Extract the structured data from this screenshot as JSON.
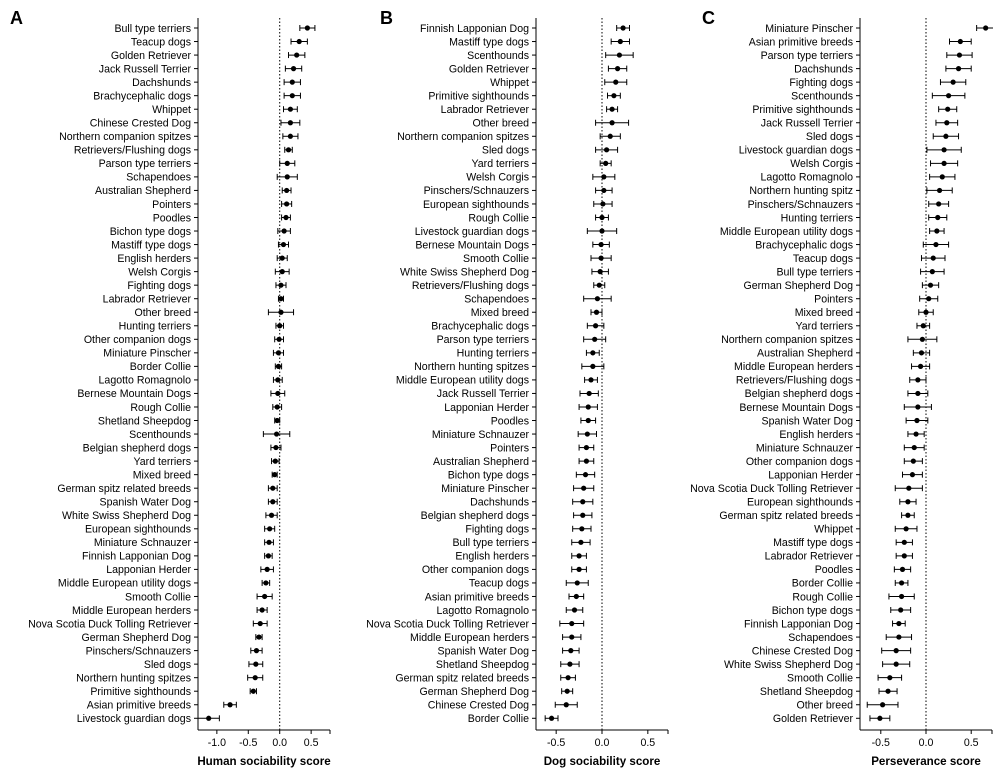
{
  "chart_data": [
    {
      "type": "scatter",
      "subtype": "forest-plot",
      "panel_label": "A",
      "xlabel": "Human sociability score",
      "xlim": [
        -1.3,
        0.8
      ],
      "xticks": [
        -1.0,
        -0.5,
        0.0,
        0.5
      ],
      "xtick_labels": [
        "-1.0",
        "-0.5",
        "0.0",
        "0.5"
      ],
      "reference_line": 0,
      "categories": [
        "Bull type terriers",
        "Teacup dogs",
        "Golden Retriever",
        "Jack Russell Terrier",
        "Dachshunds",
        "Brachycephalic dogs",
        "Whippet",
        "Chinese Crested Dog",
        "Northern companion spitzes",
        "Retrievers/Flushing dogs",
        "Parson type terriers",
        "Schapendoes",
        "Australian Shepherd",
        "Pointers",
        "Poodles",
        "Bichon type dogs",
        "Mastiff type dogs",
        "English herders",
        "Welsh Corgis",
        "Fighting dogs",
        "Labrador Retriever",
        "Other breed",
        "Hunting terriers",
        "Other companion dogs",
        "Miniature Pinscher",
        "Border Collie",
        "Lagotto Romagnolo",
        "Bernese Mountain Dogs",
        "Rough Collie",
        "Shetland Sheepdog",
        "Scenthounds",
        "Belgian shepherd dogs",
        "Yard terriers",
        "Mixed breed",
        "German spitz related breeds",
        "Spanish Water Dog",
        "White Swiss Shepherd Dog",
        "European sighthounds",
        "Miniature Schnauzer",
        "Finnish Lapponian Dog",
        "Lapponian Herder",
        "Middle European utility dogs",
        "Smooth Collie",
        "Middle European herders",
        "Nova Scotia Duck Tolling Retriever",
        "German Shepherd Dog",
        "Pinschers/Schnauzers",
        "Sled dogs",
        "Northern hunting spitzes",
        "Primitive sighthounds",
        "Asian primitive breeds",
        "Livestock guardian dogs"
      ],
      "values": [
        0.44,
        0.31,
        0.27,
        0.22,
        0.2,
        0.2,
        0.17,
        0.17,
        0.17,
        0.14,
        0.12,
        0.12,
        0.11,
        0.11,
        0.1,
        0.07,
        0.06,
        0.04,
        0.04,
        0.02,
        0.02,
        0.02,
        0.0,
        -0.01,
        -0.02,
        -0.02,
        -0.03,
        -0.03,
        -0.04,
        -0.04,
        -0.05,
        -0.06,
        -0.07,
        -0.08,
        -0.11,
        -0.11,
        -0.13,
        -0.16,
        -0.17,
        -0.18,
        -0.2,
        -0.22,
        -0.24,
        -0.28,
        -0.31,
        -0.33,
        -0.37,
        -0.38,
        -0.39,
        -0.42,
        -0.79,
        -1.13
      ],
      "ci_low": [
        0.32,
        0.18,
        0.14,
        0.09,
        0.07,
        0.07,
        0.06,
        0.02,
        0.05,
        0.08,
        0.0,
        -0.04,
        0.04,
        0.03,
        0.03,
        -0.03,
        -0.02,
        -0.04,
        -0.07,
        -0.06,
        -0.02,
        -0.18,
        -0.06,
        -0.08,
        -0.1,
        -0.07,
        -0.1,
        -0.14,
        -0.11,
        -0.08,
        -0.26,
        -0.14,
        -0.13,
        -0.12,
        -0.18,
        -0.18,
        -0.22,
        -0.24,
        -0.24,
        -0.24,
        -0.3,
        -0.28,
        -0.36,
        -0.36,
        -0.42,
        -0.38,
        -0.46,
        -0.49,
        -0.51,
        -0.47,
        -0.89,
        -1.3
      ],
      "ci_high": [
        0.56,
        0.44,
        0.4,
        0.35,
        0.33,
        0.33,
        0.28,
        0.32,
        0.29,
        0.2,
        0.24,
        0.28,
        0.18,
        0.19,
        0.17,
        0.17,
        0.14,
        0.12,
        0.15,
        0.1,
        0.06,
        0.22,
        0.06,
        0.06,
        0.06,
        0.03,
        0.04,
        0.08,
        0.03,
        0.0,
        0.16,
        0.02,
        -0.01,
        -0.04,
        -0.04,
        -0.04,
        -0.04,
        -0.08,
        -0.1,
        -0.12,
        -0.1,
        -0.16,
        -0.12,
        -0.2,
        -0.2,
        -0.28,
        -0.28,
        -0.27,
        -0.27,
        -0.37,
        -0.69,
        -0.96
      ]
    },
    {
      "type": "scatter",
      "subtype": "forest-plot",
      "panel_label": "B",
      "xlabel": "Dog sociability score",
      "xlim": [
        -0.72,
        0.72
      ],
      "xticks": [
        -0.5,
        0.0,
        0.5
      ],
      "xtick_labels": [
        "-0.5",
        "0.0",
        "0.5"
      ],
      "reference_line": 0,
      "categories": [
        "Finnish Lapponian Dog",
        "Mastiff type dogs",
        "Scenthounds",
        "Golden Retriever",
        "Whippet",
        "Primitive sighthounds",
        "Labrador Retriever",
        "Other breed",
        "Northern companion spitzes",
        "Sled dogs",
        "Yard terriers",
        "Welsh Corgis",
        "Pinschers/Schnauzers",
        "European sighthounds",
        "Rough Collie",
        "Livestock guardian dogs",
        "Bernese Mountain Dogs",
        "Smooth Collie",
        "White Swiss Shepherd Dog",
        "Retrievers/Flushing dogs",
        "Schapendoes",
        "Mixed breed",
        "Brachycephalic dogs",
        "Parson type terriers",
        "Hunting terriers",
        "Northern hunting spitzes",
        "Middle European utility dogs",
        "Jack Russell Terrier",
        "Lapponian Herder",
        "Poodles",
        "Miniature Schnauzer",
        "Pointers",
        "Australian Shepherd",
        "Bichon type dogs",
        "Miniature Pinscher",
        "Dachshunds",
        "Belgian shepherd dogs",
        "Fighting dogs",
        "Bull type terriers",
        "English herders",
        "Other companion dogs",
        "Teacup dogs",
        "Asian primitive breeds",
        "Lagotto Romagnolo",
        "Nova Scotia Duck Tolling Retriever",
        "Middle European herders",
        "Spanish Water Dog",
        "Shetland Sheepdog",
        "German spitz related breeds",
        "German Shepherd Dog",
        "Chinese Crested Dog",
        "Border Collie"
      ],
      "values": [
        0.23,
        0.2,
        0.19,
        0.17,
        0.15,
        0.13,
        0.11,
        0.11,
        0.09,
        0.05,
        0.04,
        0.02,
        0.02,
        0.01,
        0.0,
        0.0,
        -0.01,
        -0.01,
        -0.02,
        -0.03,
        -0.05,
        -0.06,
        -0.07,
        -0.08,
        -0.1,
        -0.1,
        -0.12,
        -0.14,
        -0.15,
        -0.15,
        -0.16,
        -0.17,
        -0.17,
        -0.18,
        -0.2,
        -0.21,
        -0.21,
        -0.22,
        -0.23,
        -0.25,
        -0.25,
        -0.27,
        -0.28,
        -0.3,
        -0.33,
        -0.33,
        -0.34,
        -0.35,
        -0.37,
        -0.38,
        -0.39,
        -0.55
      ],
      "ci_low": [
        0.16,
        0.1,
        0.04,
        0.07,
        0.03,
        0.06,
        0.05,
        -0.07,
        -0.02,
        -0.07,
        -0.02,
        -0.1,
        -0.07,
        -0.09,
        -0.07,
        -0.16,
        -0.1,
        -0.12,
        -0.11,
        -0.09,
        -0.2,
        -0.12,
        -0.16,
        -0.2,
        -0.17,
        -0.22,
        -0.19,
        -0.24,
        -0.25,
        -0.23,
        -0.26,
        -0.25,
        -0.25,
        -0.28,
        -0.31,
        -0.32,
        -0.31,
        -0.32,
        -0.33,
        -0.33,
        -0.33,
        -0.39,
        -0.36,
        -0.39,
        -0.46,
        -0.43,
        -0.43,
        -0.45,
        -0.45,
        -0.44,
        -0.51,
        -0.62
      ],
      "ci_high": [
        0.3,
        0.3,
        0.34,
        0.27,
        0.27,
        0.2,
        0.17,
        0.29,
        0.2,
        0.17,
        0.1,
        0.14,
        0.11,
        0.11,
        0.07,
        0.16,
        0.08,
        0.1,
        0.07,
        0.03,
        0.1,
        0.0,
        0.02,
        0.04,
        -0.03,
        0.02,
        -0.05,
        -0.04,
        -0.05,
        -0.07,
        -0.06,
        -0.09,
        -0.09,
        -0.08,
        -0.09,
        -0.1,
        -0.11,
        -0.12,
        -0.13,
        -0.17,
        -0.17,
        -0.15,
        -0.2,
        -0.21,
        -0.2,
        -0.23,
        -0.25,
        -0.25,
        -0.29,
        -0.32,
        -0.27,
        -0.48
      ]
    },
    {
      "type": "scatter",
      "subtype": "forest-plot",
      "panel_label": "C",
      "xlabel": "Perseverance score",
      "xlim": [
        -0.73,
        0.73
      ],
      "xticks": [
        -0.5,
        0.0,
        0.5
      ],
      "xtick_labels": [
        "-0.5",
        "0.0",
        "0.5"
      ],
      "reference_line": 0,
      "categories": [
        "Miniature Pinscher",
        "Asian primitive breeds",
        "Parson type terriers",
        "Dachshunds",
        "Fighting dogs",
        "Scenthounds",
        "Primitive sighthounds",
        "Jack Russell Terrier",
        "Sled dogs",
        "Livestock guardian dogs",
        "Welsh Corgis",
        "Lagotto Romagnolo",
        "Northern hunting spitz",
        "Pinschers/Schnauzers",
        "Hunting terriers",
        "Middle European utility dogs",
        "Brachycephalic dogs",
        "Teacup dogs",
        "Bull type terriers",
        "German Shepherd Dog",
        "Pointers",
        "Mixed breed",
        "Yard terriers",
        "Northern companion spitzes",
        "Australian Shepherd",
        "Middle European herders",
        "Retrievers/Flushing dogs",
        "Belgian shepherd dogs",
        "Bernese Mountain Dogs",
        "Spanish Water Dog",
        "English herders",
        "Miniature Schnauzer",
        "Other companion dogs",
        "Lapponian Herder",
        "Nova Scotia Duck Tolling Retriever",
        "European sighthounds",
        "German spitz related breeds",
        "Whippet",
        "Mastiff type dogs",
        "Labrador Retriever",
        "Poodles",
        "Border Collie",
        "Rough Collie",
        "Bichon type dogs",
        "Finnish Lapponian Dog",
        "Schapendoes",
        "Chinese Crested Dog",
        "White Swiss Shepherd Dog",
        "Smooth Collie",
        "Shetland Sheepdog",
        "Other breed",
        "Golden Retriever"
      ],
      "values": [
        0.66,
        0.38,
        0.37,
        0.36,
        0.3,
        0.25,
        0.24,
        0.23,
        0.22,
        0.2,
        0.2,
        0.18,
        0.15,
        0.14,
        0.13,
        0.12,
        0.11,
        0.08,
        0.07,
        0.05,
        0.03,
        0.0,
        -0.03,
        -0.04,
        -0.05,
        -0.06,
        -0.09,
        -0.09,
        -0.09,
        -0.1,
        -0.11,
        -0.13,
        -0.14,
        -0.15,
        -0.19,
        -0.2,
        -0.2,
        -0.22,
        -0.24,
        -0.24,
        -0.26,
        -0.27,
        -0.27,
        -0.28,
        -0.3,
        -0.3,
        -0.33,
        -0.33,
        -0.4,
        -0.42,
        -0.48,
        -0.51
      ],
      "ci_low": [
        0.56,
        0.26,
        0.23,
        0.22,
        0.16,
        0.07,
        0.14,
        0.11,
        0.08,
        0.01,
        0.05,
        0.04,
        0.01,
        0.03,
        0.03,
        0.04,
        -0.03,
        -0.05,
        -0.06,
        -0.04,
        -0.07,
        -0.08,
        -0.1,
        -0.2,
        -0.14,
        -0.16,
        -0.18,
        -0.2,
        -0.24,
        -0.22,
        -0.2,
        -0.24,
        -0.24,
        -0.26,
        -0.34,
        -0.29,
        -0.27,
        -0.34,
        -0.33,
        -0.33,
        -0.35,
        -0.34,
        -0.41,
        -0.39,
        -0.37,
        -0.44,
        -0.49,
        -0.48,
        -0.53,
        -0.52,
        -0.65,
        -0.62
      ],
      "ci_high": [
        0.76,
        0.5,
        0.51,
        0.5,
        0.44,
        0.43,
        0.34,
        0.35,
        0.36,
        0.39,
        0.35,
        0.32,
        0.29,
        0.25,
        0.23,
        0.2,
        0.25,
        0.21,
        0.2,
        0.14,
        0.13,
        0.08,
        0.04,
        0.12,
        0.04,
        0.04,
        0.0,
        0.02,
        0.06,
        0.02,
        -0.02,
        -0.02,
        -0.04,
        -0.04,
        -0.04,
        -0.11,
        -0.13,
        -0.1,
        -0.15,
        -0.15,
        -0.17,
        -0.2,
        -0.13,
        -0.17,
        -0.23,
        -0.16,
        -0.17,
        -0.18,
        -0.27,
        -0.32,
        -0.31,
        -0.4
      ]
    }
  ]
}
